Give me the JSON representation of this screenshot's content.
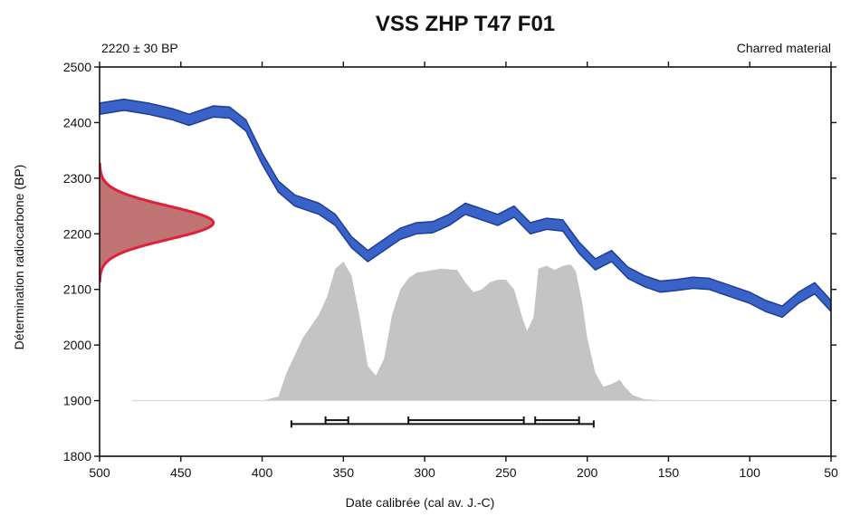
{
  "chart_data": {
    "type": "area",
    "title": "VSS ZHP T47 F01",
    "subtitle_left": "2220 ± 30 BP",
    "subtitle_right": "Charred material",
    "xlabel": "Date calibrée (cal av. J.-C)",
    "ylabel": "Détermination radiocarbone (BP)",
    "xlim": [
      500,
      50
    ],
    "ylim": [
      1800,
      2500
    ],
    "x_ticks": [
      500,
      450,
      400,
      350,
      300,
      250,
      200,
      150,
      100,
      50
    ],
    "y_ticks": [
      1800,
      1900,
      2000,
      2100,
      2200,
      2300,
      2400,
      2500
    ],
    "grid": false,
    "colors": {
      "curve_fill": "#3a63c8",
      "curve_edge": "#1e3c9a",
      "probability": "#c4c4c4",
      "measurement_fill": "#b45a5a",
      "measurement_edge": "#e0203a",
      "axis": "#111111"
    },
    "measurement": {
      "mean_bp": 2220,
      "sigma_bp": 30
    },
    "calibration_curve": {
      "x": [
        500,
        485,
        470,
        455,
        445,
        430,
        420,
        410,
        400,
        390,
        380,
        365,
        355,
        345,
        335,
        325,
        315,
        305,
        295,
        285,
        275,
        265,
        255,
        245,
        235,
        225,
        215,
        205,
        195,
        185,
        175,
        165,
        155,
        145,
        135,
        125,
        115,
        100,
        90,
        80,
        70,
        60,
        50
      ],
      "y": [
        2425,
        2432,
        2425,
        2415,
        2405,
        2420,
        2418,
        2395,
        2335,
        2285,
        2260,
        2245,
        2225,
        2185,
        2160,
        2180,
        2200,
        2210,
        2212,
        2225,
        2245,
        2235,
        2225,
        2240,
        2210,
        2218,
        2215,
        2175,
        2145,
        2160,
        2130,
        2115,
        2105,
        2108,
        2112,
        2110,
        2100,
        2085,
        2070,
        2060,
        2085,
        2102,
        2070
      ],
      "band_half_width": 10
    },
    "probability_distribution": {
      "x": [
        500,
        420,
        400,
        390,
        385,
        375,
        365,
        360,
        355,
        350,
        345,
        340,
        335,
        330,
        325,
        320,
        315,
        310,
        305,
        300,
        290,
        280,
        275,
        270,
        265,
        260,
        255,
        250,
        245,
        240,
        237,
        233,
        230,
        225,
        220,
        215,
        210,
        207,
        203,
        200,
        195,
        190,
        185,
        180,
        177,
        172,
        165,
        150,
        100,
        50
      ],
      "y": [
        0,
        0,
        0,
        0.03,
        0.2,
        0.45,
        0.62,
        0.75,
        0.95,
        1.0,
        0.9,
        0.6,
        0.25,
        0.18,
        0.3,
        0.62,
        0.8,
        0.88,
        0.92,
        0.93,
        0.95,
        0.94,
        0.85,
        0.78,
        0.8,
        0.85,
        0.87,
        0.87,
        0.8,
        0.6,
        0.5,
        0.6,
        0.95,
        0.97,
        0.94,
        0.97,
        0.98,
        0.93,
        0.7,
        0.45,
        0.2,
        0.1,
        0.12,
        0.15,
        0.1,
        0.04,
        0.01,
        0,
        0,
        0
      ],
      "baseline_bp": 1900,
      "peak_bp": 2150
    },
    "ranges": {
      "one_sigma": [
        [
          361,
          347
        ],
        [
          310,
          239
        ],
        [
          232,
          205
        ]
      ],
      "two_sigma": [
        [
          382,
          196
        ]
      ],
      "one_sigma_bp": 1865,
      "two_sigma_bp": 1858
    }
  }
}
